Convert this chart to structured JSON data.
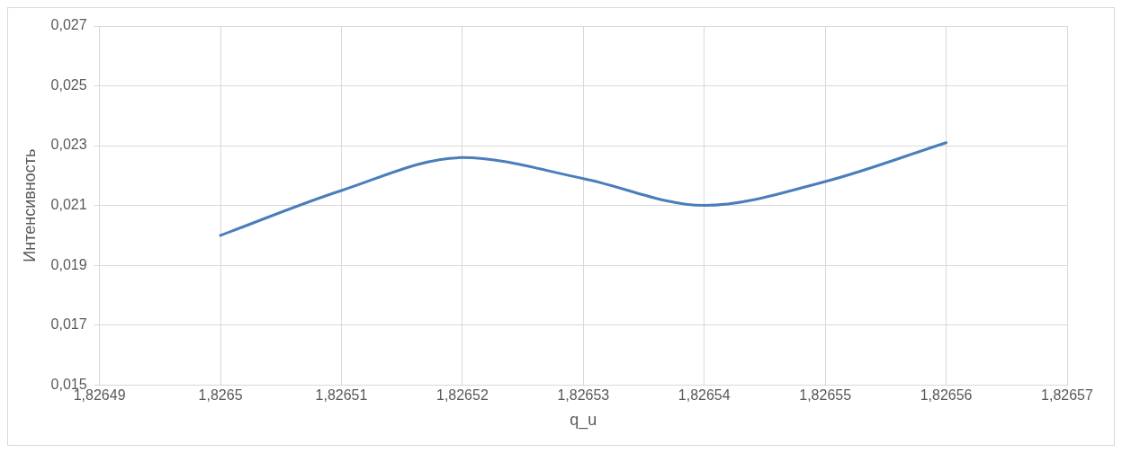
{
  "chart_data": {
    "type": "line",
    "xlabel": "q_u",
    "ylabel": "Интенсивность",
    "categories": [
      "1,82649",
      "1,8265",
      "1,82651",
      "1,82652",
      "1,82653",
      "1,82654",
      "1,82655",
      "1,82656",
      "1,82657"
    ],
    "series": [
      {
        "color": "#4a7ebb",
        "values": [
          null,
          0.02,
          0.0215,
          0.0226,
          0.0219,
          0.021,
          0.0218,
          0.0231,
          null
        ]
      }
    ],
    "ylim": [
      0.015,
      0.027
    ],
    "yticks": [
      {
        "value": 0.015,
        "label": "0,015"
      },
      {
        "value": 0.017,
        "label": "0,017"
      },
      {
        "value": 0.019,
        "label": "0,019"
      },
      {
        "value": 0.021,
        "label": "0,021"
      },
      {
        "value": 0.023,
        "label": "0,023"
      },
      {
        "value": 0.025,
        "label": "0,025"
      },
      {
        "value": 0.027,
        "label": "0,027"
      }
    ],
    "grid": true,
    "legend": false,
    "marker": "none",
    "line_style": "solid"
  }
}
